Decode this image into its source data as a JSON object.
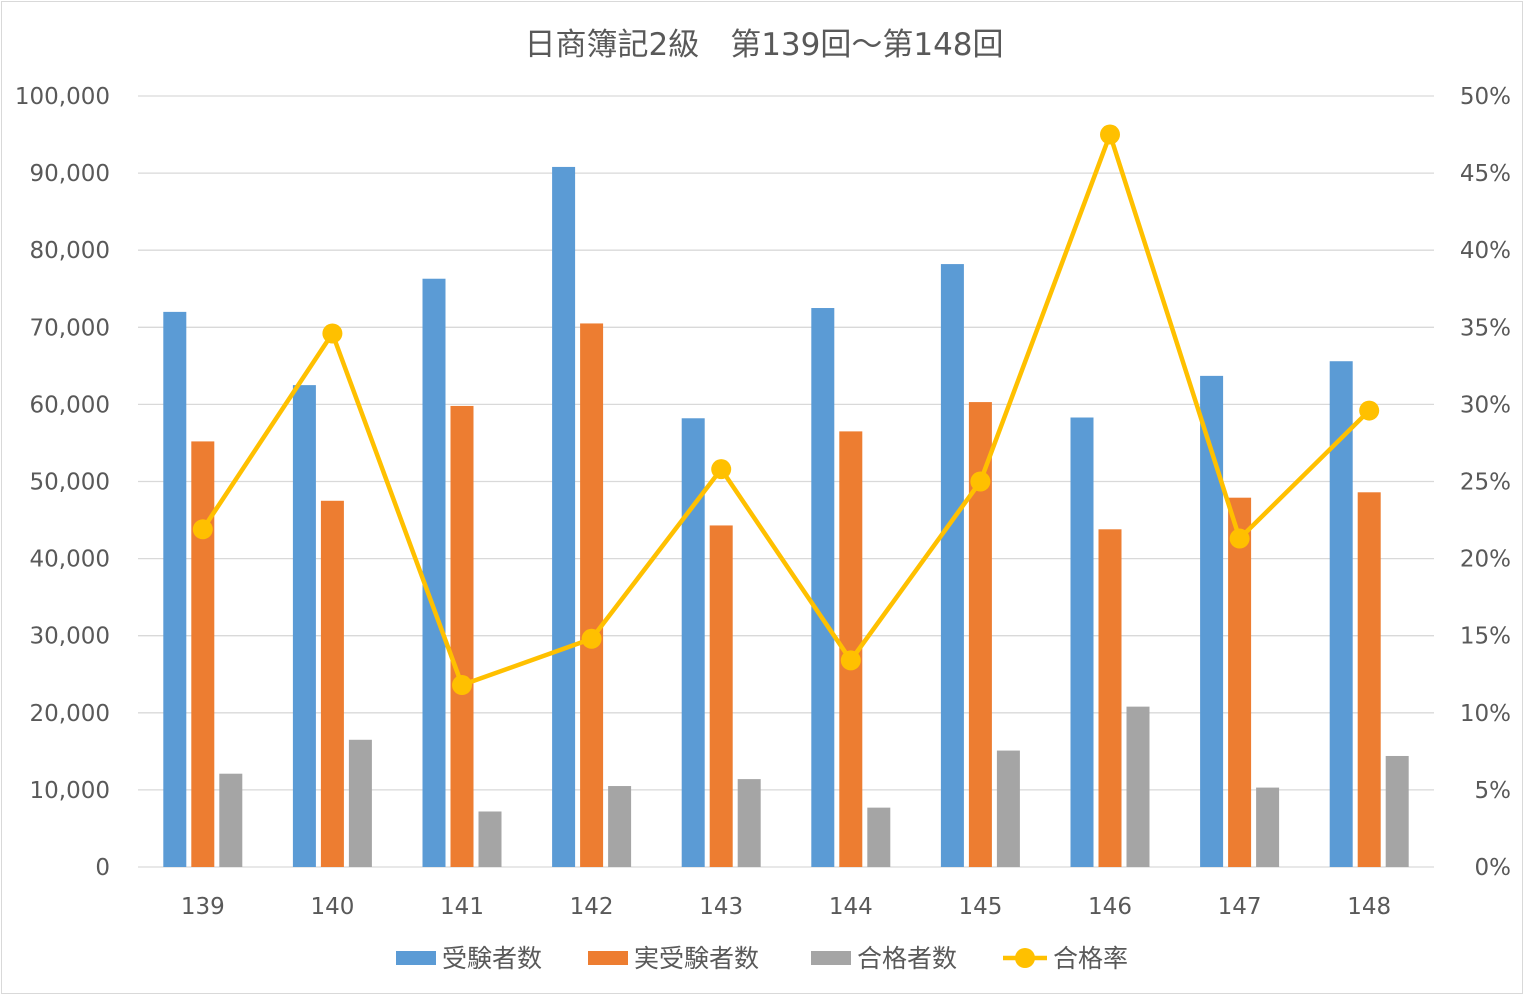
{
  "chart_data": {
    "type": "bar",
    "title": "日商簿記2級　第139回～第148回",
    "categories": [
      "139",
      "140",
      "141",
      "142",
      "143",
      "144",
      "145",
      "146",
      "147",
      "148"
    ],
    "y_left": {
      "min": 0,
      "max": 100000,
      "ticks": [
        "0",
        "10,000",
        "20,000",
        "30,000",
        "40,000",
        "50,000",
        "60,000",
        "70,000",
        "80,000",
        "90,000",
        "100,000"
      ]
    },
    "y_right": {
      "min": 0,
      "max": 0.5,
      "ticks": [
        "0%",
        "5%",
        "10%",
        "15%",
        "20%",
        "25%",
        "30%",
        "35%",
        "40%",
        "45%",
        "50%"
      ]
    },
    "grid": true,
    "legend_position": "bottom",
    "series": [
      {
        "name": "受験者数",
        "type": "bar",
        "axis": "left",
        "color": "#5b9bd5",
        "values": [
          72000,
          62500,
          76300,
          90800,
          58200,
          72500,
          78200,
          58300,
          63700,
          65600
        ]
      },
      {
        "name": "実受験者数",
        "type": "bar",
        "axis": "left",
        "color": "#ed7d31",
        "values": [
          55200,
          47500,
          59800,
          70500,
          44300,
          56500,
          60300,
          43800,
          47900,
          48600
        ]
      },
      {
        "name": "合格者数",
        "type": "bar",
        "axis": "left",
        "color": "#a5a5a5",
        "values": [
          12100,
          16500,
          7200,
          10500,
          11400,
          7700,
          15100,
          20800,
          10300,
          14400
        ]
      },
      {
        "name": "合格率",
        "type": "line",
        "axis": "right",
        "color": "#ffc000",
        "values": [
          0.219,
          0.346,
          0.118,
          0.148,
          0.258,
          0.134,
          0.25,
          0.475,
          0.213,
          0.296
        ]
      }
    ]
  }
}
